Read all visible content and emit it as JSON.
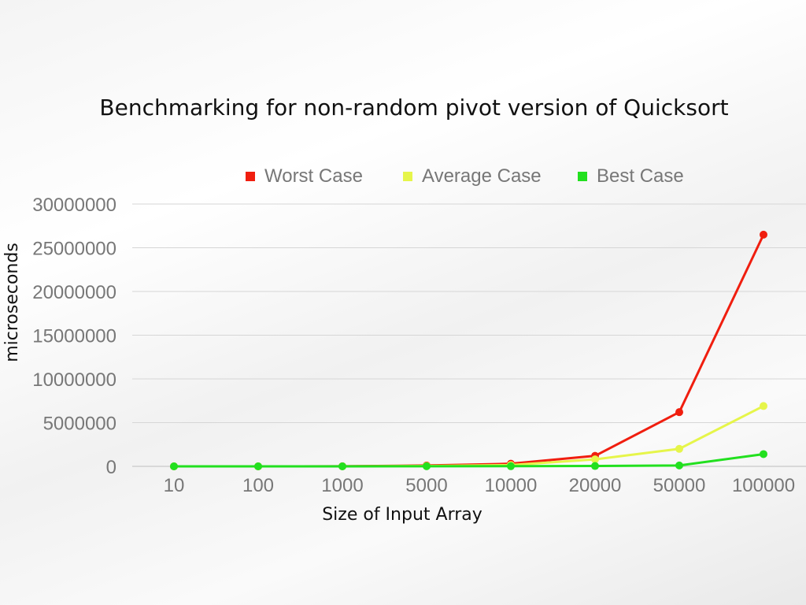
{
  "colors": {
    "worst": "#f01e0f",
    "average": "#e6f54a",
    "best": "#22e01f",
    "grid": "#d6d6d6",
    "axis_text": "#777777",
    "label_text": "#111111"
  },
  "chart_data": {
    "type": "line",
    "title": "Benchmarking for non-random pivot version of Quicksort",
    "xlabel": "Size of Input Array",
    "ylabel": "microseconds",
    "categories": [
      "10",
      "100",
      "1000",
      "5000",
      "10000",
      "20000",
      "50000",
      "100000"
    ],
    "y_ticks": [
      "0",
      "5000000",
      "10000000",
      "15000000",
      "20000000",
      "25000000",
      "30000000"
    ],
    "ylim": [
      0,
      30000000
    ],
    "grid": true,
    "legend_position": "top",
    "series": [
      {
        "name": "Worst Case",
        "color_key": "worst",
        "values": [
          0,
          1000,
          10000,
          100000,
          300000,
          1200000,
          6200000,
          26500000
        ]
      },
      {
        "name": "Average Case",
        "color_key": "average",
        "values": [
          0,
          0,
          5000,
          50000,
          150000,
          800000,
          2000000,
          6900000
        ]
      },
      {
        "name": "Best Case",
        "color_key": "best",
        "values": [
          0,
          0,
          0,
          10000,
          20000,
          40000,
          100000,
          1400000
        ]
      }
    ]
  }
}
